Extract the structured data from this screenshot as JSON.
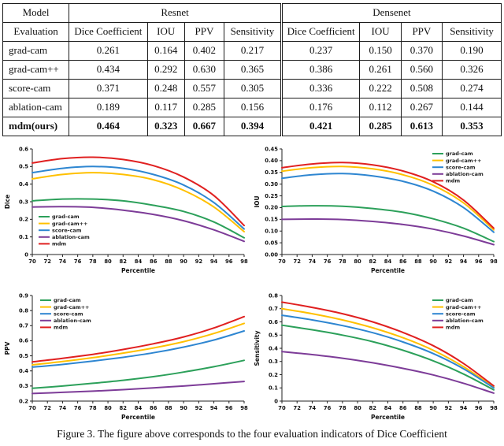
{
  "table": {
    "corner_top": "Model",
    "corner_bottom": "Evaluation",
    "group_headers": [
      "Resnet",
      "Densenet"
    ],
    "sub_headers": [
      "Dice Coefficient",
      "IOU",
      "PPV",
      "Sensitivity",
      "Dice Coefficient",
      "IOU",
      "PPV",
      "Sensitivity"
    ],
    "rows": [
      {
        "method": "grad-cam",
        "values": [
          "0.261",
          "0.164",
          "0.402",
          "0.217",
          "0.237",
          "0.150",
          "0.370",
          "0.190"
        ],
        "bold": false
      },
      {
        "method": "grad-cam++",
        "values": [
          "0.434",
          "0.292",
          "0.630",
          "0.365",
          "0.386",
          "0.261",
          "0.560",
          "0.326"
        ],
        "bold": false
      },
      {
        "method": "score-cam",
        "values": [
          "0.371",
          "0.248",
          "0.557",
          "0.305",
          "0.336",
          "0.222",
          "0.508",
          "0.274"
        ],
        "bold": false
      },
      {
        "method": "ablation-cam",
        "values": [
          "0.189",
          "0.117",
          "0.285",
          "0.156",
          "0.176",
          "0.112",
          "0.267",
          "0.144"
        ],
        "bold": false
      },
      {
        "method": "mdm(ours)",
        "values": [
          "0.464",
          "0.323",
          "0.667",
          "0.394",
          "0.421",
          "0.285",
          "0.613",
          "0.353"
        ],
        "bold": true
      }
    ]
  },
  "caption": "Figure 3. The figure above corresponds to the four evaluation indicators of Dice Coefficient",
  "colors": {
    "grad_cam": "#2ca05a",
    "grad_cam_pp": "#ffc000",
    "score_cam": "#2e86d1",
    "ablation_cam": "#7d3c98",
    "mdm": "#e02020"
  },
  "chart_data": [
    {
      "type": "line",
      "title": "",
      "xlabel": "Percentile",
      "ylabel": "Dice",
      "x": [
        70,
        74,
        78,
        82,
        86,
        90,
        94,
        98
      ],
      "xlim": [
        70,
        98
      ],
      "ylim": [
        0,
        0.6
      ],
      "xticks": [
        70,
        72,
        74,
        76,
        78,
        80,
        82,
        84,
        86,
        88,
        90,
        92,
        94,
        96,
        98
      ],
      "yticks": [
        0,
        0.1,
        0.2,
        0.3,
        0.4,
        0.5,
        0.6
      ],
      "ytick_labels": [
        "0",
        "0.1",
        "0.2",
        "0.3",
        "0.4",
        "0.5",
        "0.6"
      ],
      "grid": false,
      "legend_position": "bottom-left",
      "series": [
        {
          "name": "grad-cam",
          "color": "#2ca05a",
          "values": [
            0.305,
            0.315,
            0.315,
            0.305,
            0.28,
            0.245,
            0.185,
            0.095
          ]
        },
        {
          "name": "grad-cam++",
          "color": "#ffc000",
          "values": [
            0.43,
            0.455,
            0.465,
            0.455,
            0.425,
            0.365,
            0.27,
            0.13
          ]
        },
        {
          "name": "score-cam",
          "color": "#2e86d1",
          "values": [
            0.465,
            0.49,
            0.5,
            0.49,
            0.455,
            0.395,
            0.295,
            0.145
          ]
        },
        {
          "name": "ablation-cam",
          "color": "#7d3c98",
          "values": [
            0.27,
            0.272,
            0.268,
            0.252,
            0.228,
            0.192,
            0.14,
            0.075
          ]
        },
        {
          "name": "mdm",
          "color": "#e02020",
          "values": [
            0.52,
            0.545,
            0.553,
            0.54,
            0.505,
            0.44,
            0.335,
            0.165
          ]
        }
      ]
    },
    {
      "type": "line",
      "title": "",
      "xlabel": "Percentile",
      "ylabel": "IOU",
      "x": [
        70,
        74,
        78,
        82,
        86,
        90,
        94,
        98
      ],
      "xlim": [
        70,
        98
      ],
      "ylim": [
        0,
        0.45
      ],
      "xticks": [
        70,
        72,
        74,
        76,
        78,
        80,
        82,
        84,
        86,
        88,
        90,
        92,
        94,
        96,
        98
      ],
      "yticks": [
        0,
        0.05,
        0.1,
        0.15,
        0.2,
        0.25,
        0.3,
        0.35,
        0.4,
        0.45
      ],
      "ytick_labels": [
        "0.00",
        "0.05",
        "0.10",
        "0.15",
        "0.20",
        "0.25",
        "0.30",
        "0.35",
        "0.40",
        "0.45"
      ],
      "grid": false,
      "legend_position": "top-right",
      "series": [
        {
          "name": "grad-cam",
          "color": "#2ca05a",
          "values": [
            0.205,
            0.208,
            0.206,
            0.196,
            0.18,
            0.152,
            0.112,
            0.055
          ]
        },
        {
          "name": "grad-cam++",
          "color": "#ffc000",
          "values": [
            0.355,
            0.37,
            0.375,
            0.365,
            0.34,
            0.295,
            0.22,
            0.105
          ]
        },
        {
          "name": "score-cam",
          "color": "#2e86d1",
          "values": [
            0.325,
            0.34,
            0.345,
            0.335,
            0.312,
            0.27,
            0.2,
            0.095
          ]
        },
        {
          "name": "ablation-cam",
          "color": "#7d3c98",
          "values": [
            0.15,
            0.151,
            0.149,
            0.141,
            0.128,
            0.108,
            0.079,
            0.042
          ]
        },
        {
          "name": "mdm",
          "color": "#e02020",
          "values": [
            0.37,
            0.386,
            0.392,
            0.382,
            0.356,
            0.31,
            0.232,
            0.112
          ]
        }
      ]
    },
    {
      "type": "line",
      "title": "",
      "xlabel": "Percentile",
      "ylabel": "PPV",
      "x": [
        70,
        74,
        78,
        82,
        86,
        90,
        94,
        98
      ],
      "xlim": [
        70,
        98
      ],
      "ylim": [
        0.2,
        0.9
      ],
      "xticks": [
        70,
        72,
        74,
        76,
        78,
        80,
        82,
        84,
        86,
        88,
        90,
        92,
        94,
        96,
        98
      ],
      "yticks": [
        0.2,
        0.3,
        0.4,
        0.5,
        0.6,
        0.7,
        0.8,
        0.9
      ],
      "ytick_labels": [
        "0.2",
        "0.3",
        "0.4",
        "0.5",
        "0.6",
        "0.7",
        "0.8",
        "0.9"
      ],
      "grid": false,
      "legend_position": "top-left",
      "series": [
        {
          "name": "grad-cam",
          "color": "#2ca05a",
          "values": [
            0.285,
            0.3,
            0.318,
            0.338,
            0.362,
            0.392,
            0.428,
            0.47
          ]
        },
        {
          "name": "grad-cam++",
          "color": "#ffc000",
          "values": [
            0.44,
            0.462,
            0.488,
            0.518,
            0.552,
            0.594,
            0.648,
            0.715
          ]
        },
        {
          "name": "score-cam",
          "color": "#2e86d1",
          "values": [
            0.425,
            0.443,
            0.465,
            0.49,
            0.52,
            0.558,
            0.605,
            0.665
          ]
        },
        {
          "name": "ablation-cam",
          "color": "#7d3c98",
          "values": [
            0.25,
            0.258,
            0.266,
            0.276,
            0.288,
            0.3,
            0.315,
            0.33
          ]
        },
        {
          "name": "mdm",
          "color": "#e02020",
          "values": [
            0.46,
            0.483,
            0.51,
            0.542,
            0.58,
            0.625,
            0.685,
            0.76
          ]
        }
      ]
    },
    {
      "type": "line",
      "title": "",
      "xlabel": "Percentile",
      "ylabel": "Sensitivity",
      "x": [
        70,
        74,
        78,
        82,
        86,
        90,
        94,
        98
      ],
      "xlim": [
        70,
        98
      ],
      "ylim": [
        0,
        0.8
      ],
      "xticks": [
        70,
        72,
        74,
        76,
        78,
        80,
        82,
        84,
        86,
        88,
        90,
        92,
        94,
        96,
        98
      ],
      "yticks": [
        0,
        0.1,
        0.2,
        0.3,
        0.4,
        0.5,
        0.6,
        0.7,
        0.8
      ],
      "ytick_labels": [
        "0",
        "0.1",
        "0.2",
        "0.3",
        "0.4",
        "0.5",
        "0.6",
        "0.7",
        "0.8"
      ],
      "grid": false,
      "legend_position": "top-right",
      "series": [
        {
          "name": "grad-cam",
          "color": "#2ca05a",
          "values": [
            0.575,
            0.54,
            0.5,
            0.45,
            0.385,
            0.305,
            0.205,
            0.085
          ]
        },
        {
          "name": "grad-cam++",
          "color": "#ffc000",
          "values": [
            0.7,
            0.662,
            0.615,
            0.555,
            0.48,
            0.385,
            0.26,
            0.105
          ]
        },
        {
          "name": "score-cam",
          "color": "#2e86d1",
          "values": [
            0.65,
            0.615,
            0.572,
            0.518,
            0.448,
            0.36,
            0.245,
            0.1
          ]
        },
        {
          "name": "ablation-cam",
          "color": "#7d3c98",
          "values": [
            0.375,
            0.352,
            0.325,
            0.29,
            0.248,
            0.198,
            0.135,
            0.06
          ]
        },
        {
          "name": "mdm",
          "color": "#e02020",
          "values": [
            0.75,
            0.71,
            0.662,
            0.6,
            0.52,
            0.42,
            0.285,
            0.115
          ]
        }
      ]
    }
  ]
}
